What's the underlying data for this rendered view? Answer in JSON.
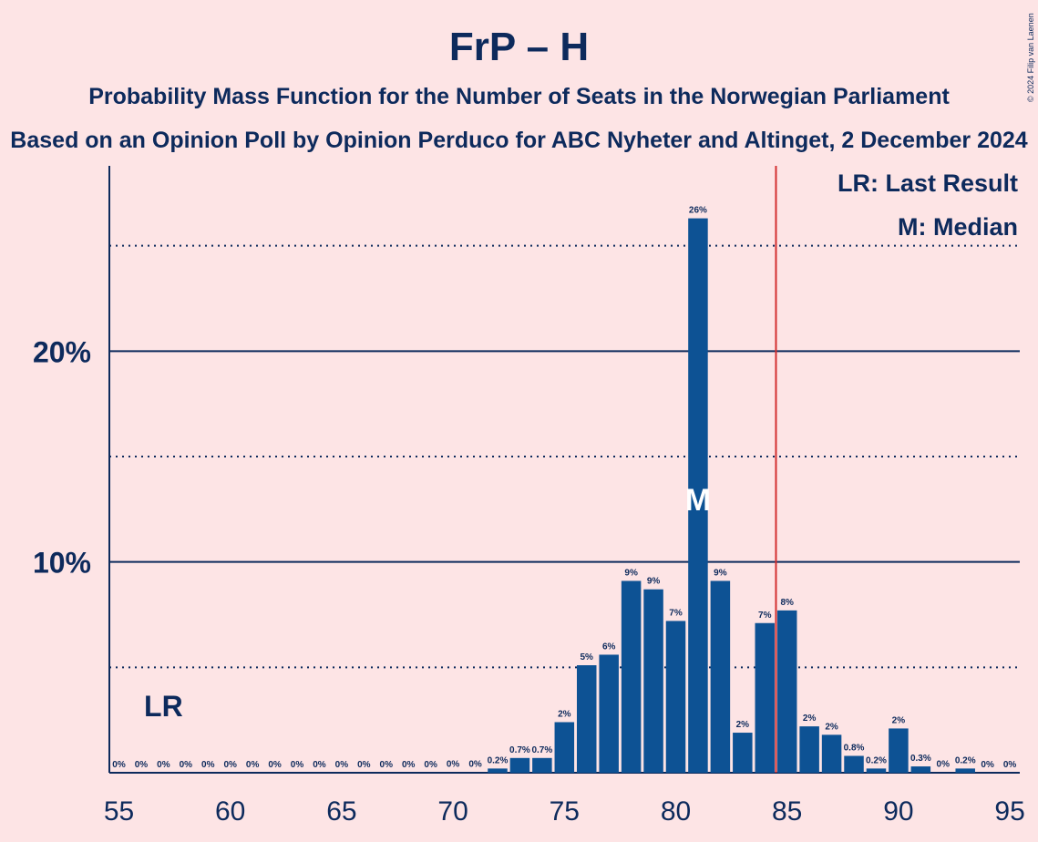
{
  "chart_data": {
    "type": "bar",
    "title": "FrP – H",
    "subtitle_lines": [
      "Probability Mass Function for the Number of Seats in the Norwegian Parliament",
      "Based on an Opinion Poll by Opinion Perduco for ABC Nyheter and Altinget, 2 December 2024"
    ],
    "copyright": "© 2024 Filip van Laenen",
    "x": [
      55,
      56,
      57,
      58,
      59,
      60,
      61,
      62,
      63,
      64,
      65,
      66,
      67,
      68,
      69,
      70,
      71,
      72,
      73,
      74,
      75,
      76,
      77,
      78,
      79,
      80,
      81,
      82,
      83,
      84,
      85,
      86,
      87,
      88,
      89,
      90,
      91,
      92,
      93,
      94,
      95
    ],
    "values": [
      0,
      0,
      0,
      0,
      0,
      0,
      0,
      0,
      0,
      0,
      0,
      0,
      0,
      0,
      0,
      0.02,
      0.02,
      0.2,
      0.7,
      0.7,
      2.4,
      5.1,
      5.6,
      9.1,
      8.7,
      7.2,
      26.3,
      9.1,
      1.9,
      7.1,
      7.7,
      2.2,
      1.8,
      0.8,
      0.2,
      2.1,
      0.3,
      0.02,
      0.2,
      0,
      0
    ],
    "bar_labels": [
      "0%",
      "0%",
      "0%",
      "0%",
      "0%",
      "0%",
      "0%",
      "0%",
      "0%",
      "0%",
      "0%",
      "0%",
      "0%",
      "0%",
      "0%",
      "0%",
      "0%",
      "0.2%",
      "0.7%",
      "0.7%",
      "2%",
      "5%",
      "6%",
      "9%",
      "9%",
      "7%",
      "26%",
      "9%",
      "2%",
      "7%",
      "8%",
      "2%",
      "2%",
      "0.8%",
      "0.2%",
      "2%",
      "0.3%",
      "0%",
      "0.2%",
      "0%",
      "0%"
    ],
    "xlim": [
      55,
      95
    ],
    "ylim": [
      0,
      28.5
    ],
    "x_ticks": [
      {
        "value": 55,
        "label": "55"
      },
      {
        "value": 60,
        "label": "60"
      },
      {
        "value": 65,
        "label": "65"
      },
      {
        "value": 70,
        "label": "70"
      },
      {
        "value": 75,
        "label": "75"
      },
      {
        "value": 80,
        "label": "80"
      },
      {
        "value": 85,
        "label": "85"
      },
      {
        "value": 90,
        "label": "90"
      },
      {
        "value": 95,
        "label": "95"
      }
    ],
    "y_major_gridlines": [
      10,
      20
    ],
    "y_minor_gridlines": [
      5,
      15,
      25
    ],
    "y_tick_labels": [
      {
        "value": 10,
        "label": "10%"
      },
      {
        "value": 20,
        "label": "20%"
      }
    ],
    "majority_line_x": 84.5,
    "last_result": {
      "seat": 57,
      "label": "LR"
    },
    "median": {
      "seat": 81,
      "label": "M"
    },
    "legend": [
      "LR: Last Result",
      "M: Median"
    ],
    "colors": {
      "background": "#fde4e5",
      "bar": "#0d5294",
      "text": "#0d2a5c",
      "majority_line": "#d32f2f"
    }
  }
}
